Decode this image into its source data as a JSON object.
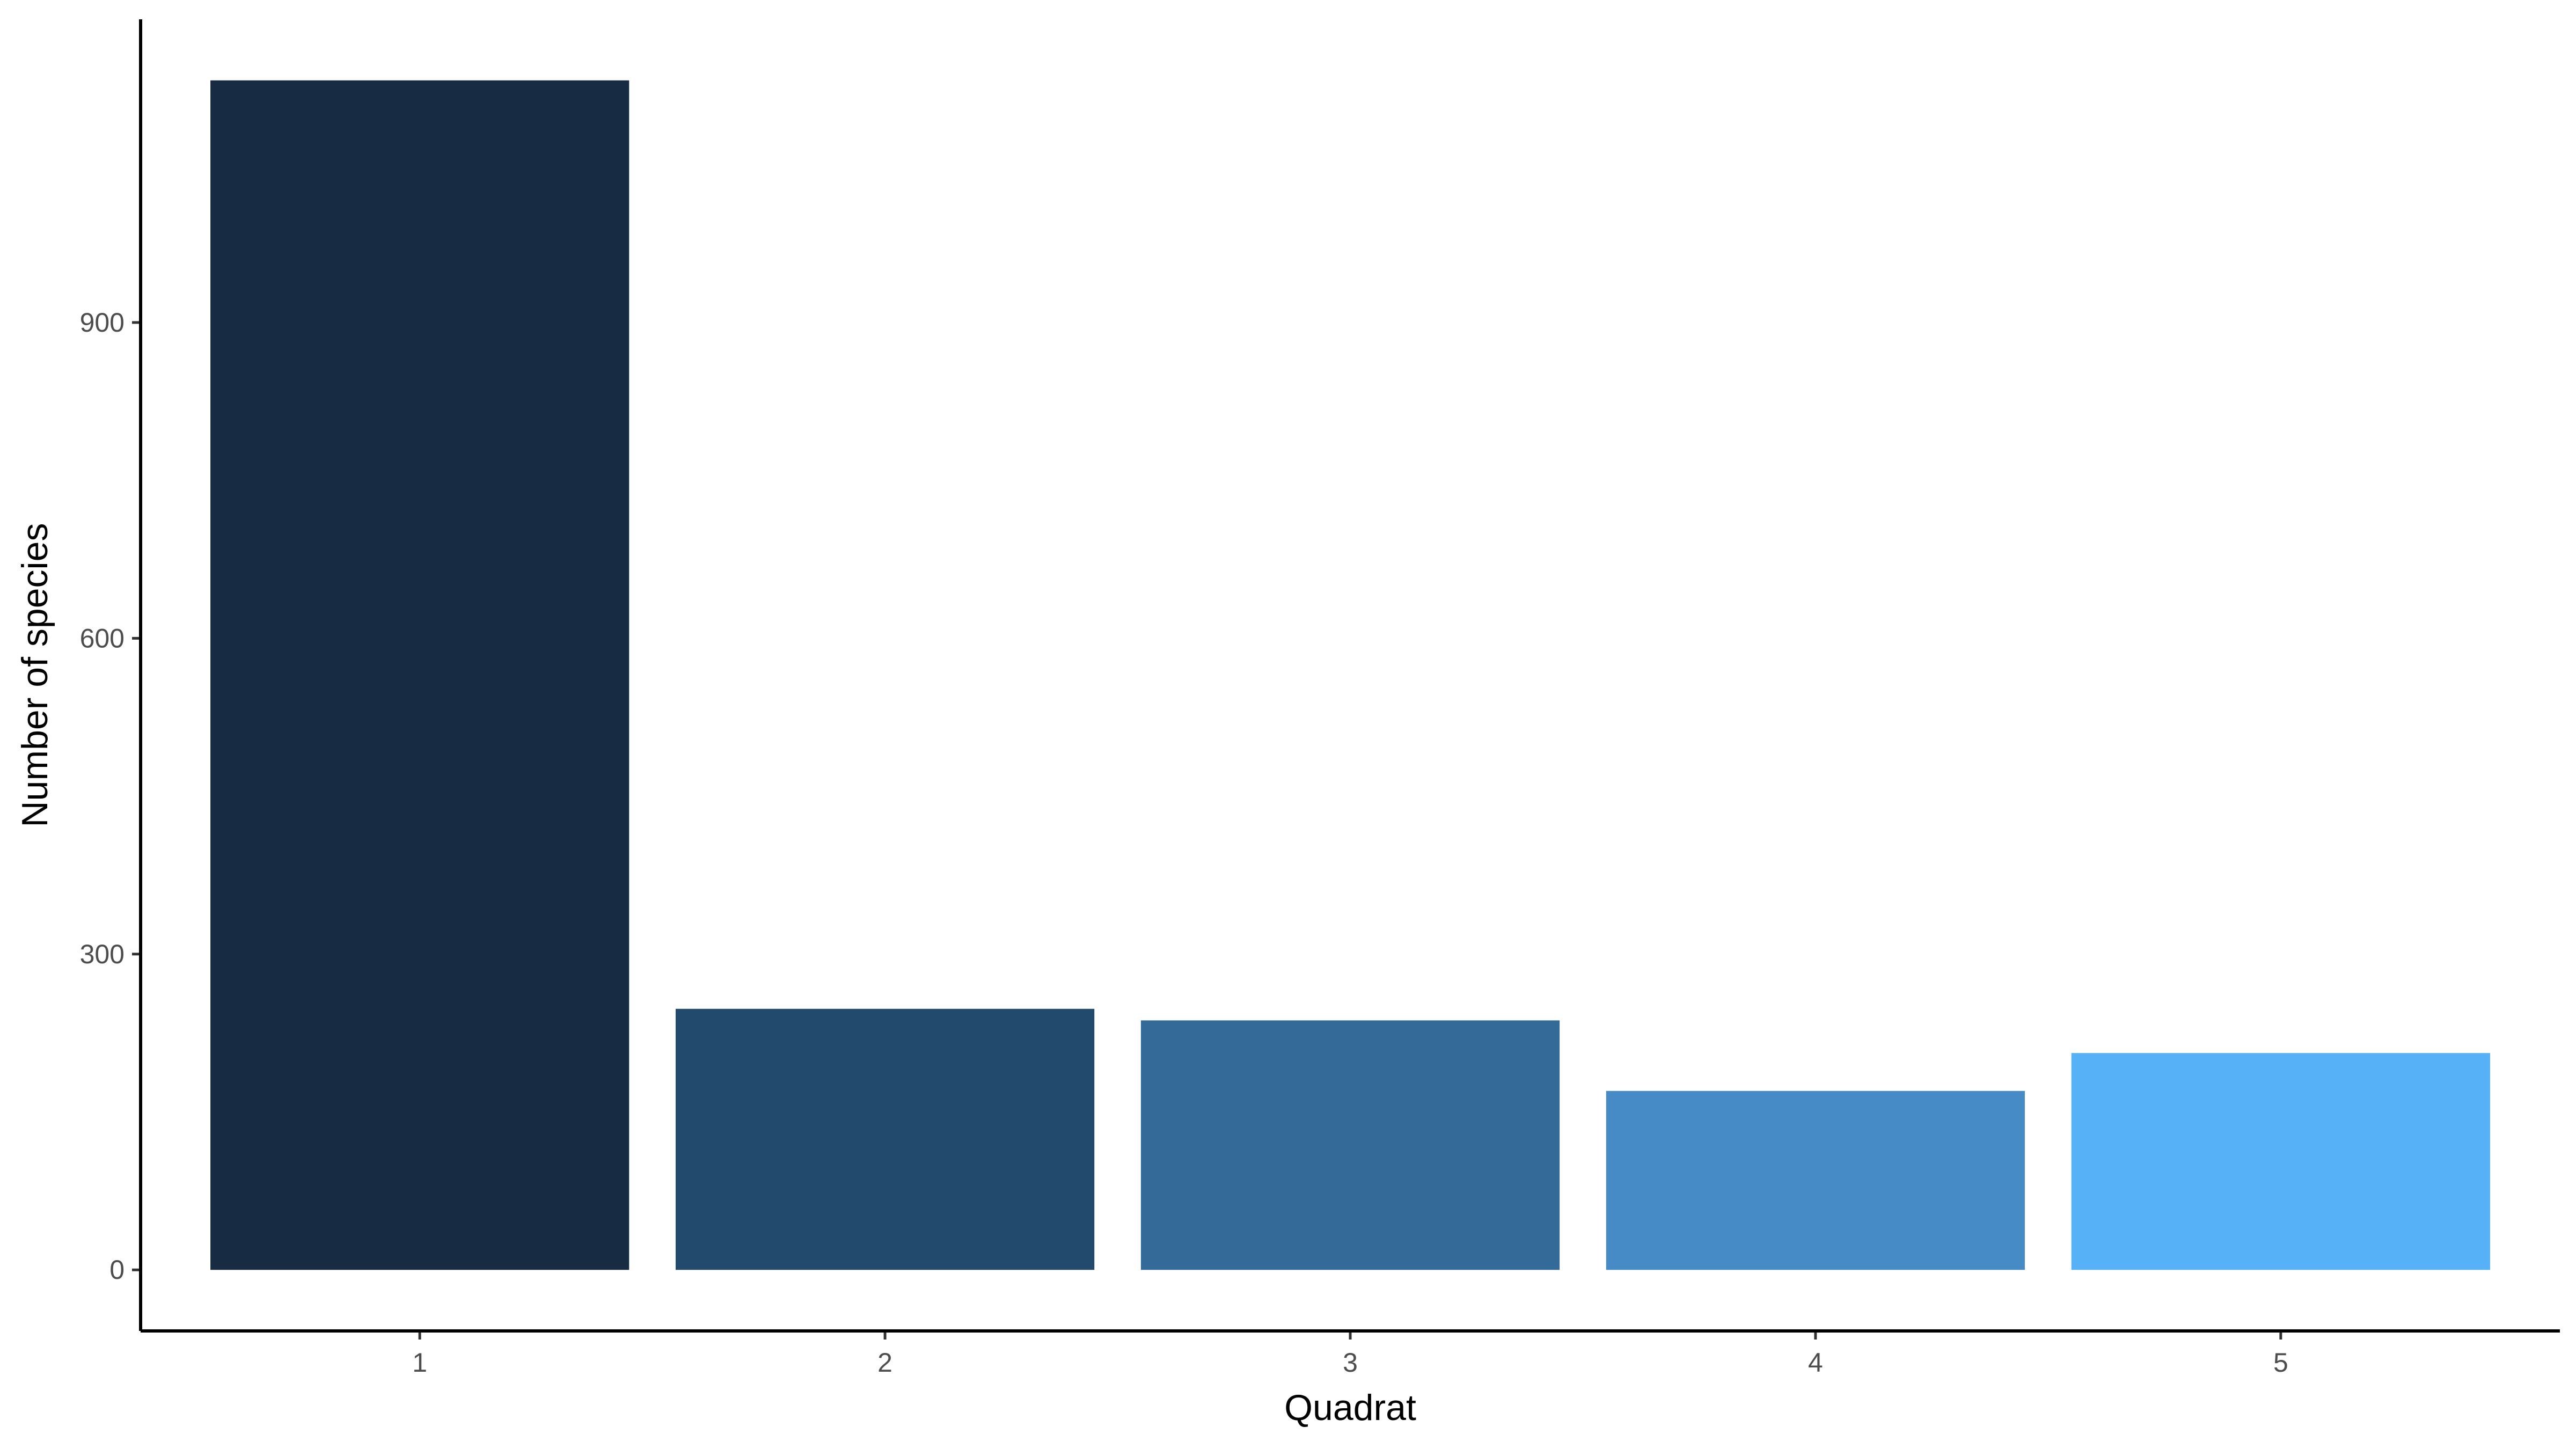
{
  "chart_data": {
    "type": "bar",
    "categories": [
      "1",
      "2",
      "3",
      "4",
      "5"
    ],
    "values": [
      1130,
      248,
      237,
      170,
      206
    ],
    "colors": [
      "#172c43",
      "#224a6d",
      "#346a98",
      "#468bc6",
      "#56b1f7"
    ],
    "title": "",
    "xlabel": "Quadrat",
    "ylabel": "Number of species",
    "ylim": [
      -58,
      1188
    ],
    "yticks": [
      0,
      300,
      600,
      900
    ],
    "grid": false,
    "legend": "none"
  }
}
